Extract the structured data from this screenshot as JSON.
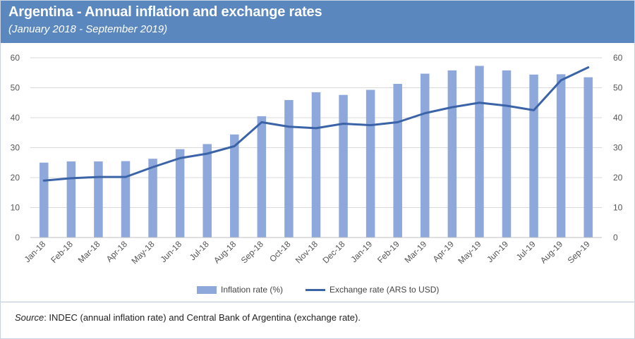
{
  "header": {
    "title": "Argentina - Annual inflation and exchange rates",
    "subtitle": "(January 2018 - September 2019)"
  },
  "source": {
    "label": "Source",
    "text": ":  INDEC (annual inflation rate) and Central Bank of Argentina (exchange rate)."
  },
  "colors": {
    "header_bg": "#5b87bf",
    "bar": "#8ea8dc",
    "line": "#3b63a8"
  },
  "chart_data": {
    "type": "bar",
    "title": "Argentina - Annual inflation and exchange rates",
    "categories": [
      "Jan-18",
      "Feb-18",
      "Mar-18",
      "Apr-18",
      "May-18",
      "Jun-18",
      "Jul-18",
      "Aug-18",
      "Sep-18",
      "Oct-18",
      "Nov-18",
      "Dec-18",
      "Jan-19",
      "Feb-19",
      "Mar-19",
      "Apr-19",
      "May-19",
      "Jun-19",
      "Jul-19",
      "Aug-19",
      "Sep-19"
    ],
    "series": [
      {
        "name": "Inflation rate (%)",
        "type": "bar",
        "axis": "left",
        "values": [
          25.0,
          25.4,
          25.4,
          25.5,
          26.3,
          29.5,
          31.2,
          34.4,
          40.5,
          45.9,
          48.5,
          47.6,
          49.3,
          51.3,
          54.7,
          55.8,
          57.3,
          55.8,
          54.4,
          54.5,
          53.5
        ]
      },
      {
        "name": "Exchange rate (ARS to USD)",
        "type": "line",
        "axis": "right",
        "values": [
          19.0,
          19.8,
          20.2,
          20.2,
          23.5,
          26.5,
          28.0,
          30.5,
          38.5,
          37.0,
          36.5,
          38.0,
          37.5,
          38.5,
          41.5,
          43.5,
          45.0,
          44.0,
          42.5,
          52.5,
          56.8
        ]
      }
    ],
    "ylim": [
      0,
      60
    ],
    "y2lim": [
      0,
      60
    ],
    "yticks": [
      "0",
      "10",
      "20",
      "30",
      "40",
      "50",
      "60"
    ],
    "y2ticks": [
      "0",
      "10",
      "20",
      "30",
      "40",
      "50",
      "60"
    ],
    "grid": true,
    "legend": [
      "Inflation rate (%)",
      "Exchange rate (ARS to USD)"
    ]
  }
}
